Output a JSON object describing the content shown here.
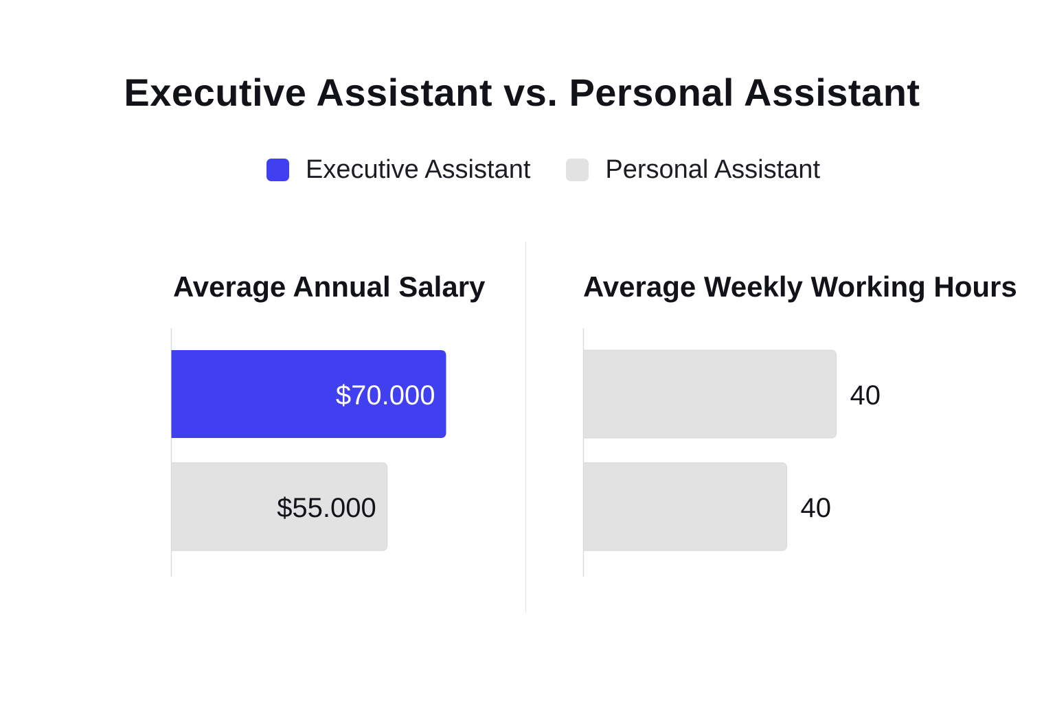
{
  "title": "Executive Assistant vs. Personal Assistant",
  "legend": [
    {
      "label": "Executive Assistant",
      "color": "#4040f0"
    },
    {
      "label": "Personal Assistant",
      "color": "#e2e2e2"
    }
  ],
  "chart_data": [
    {
      "type": "bar",
      "orientation": "horizontal",
      "title": "Average Annual Salary",
      "categories": [
        "Executive Assistant",
        "Personal Assistant"
      ],
      "values": [
        70000,
        55000
      ],
      "value_labels": [
        "$70.000",
        "$55.000"
      ],
      "label_position": "inside",
      "bar_colors": [
        "#4040f0",
        "#e2e2e2"
      ],
      "label_colors": [
        "#ffffff",
        "#111318"
      ],
      "xlim": [
        0,
        70000
      ]
    },
    {
      "type": "bar",
      "orientation": "horizontal",
      "title": "Average Weekly Working Hours",
      "categories": [
        "Executive Assistant",
        "Personal Assistant"
      ],
      "values": [
        40,
        40
      ],
      "value_labels": [
        "40",
        "40"
      ],
      "label_position": "outside",
      "bar_colors": [
        "#e2e2e2",
        "#e2e2e2"
      ],
      "label_colors": [
        "#111318",
        "#111318"
      ]
    }
  ]
}
